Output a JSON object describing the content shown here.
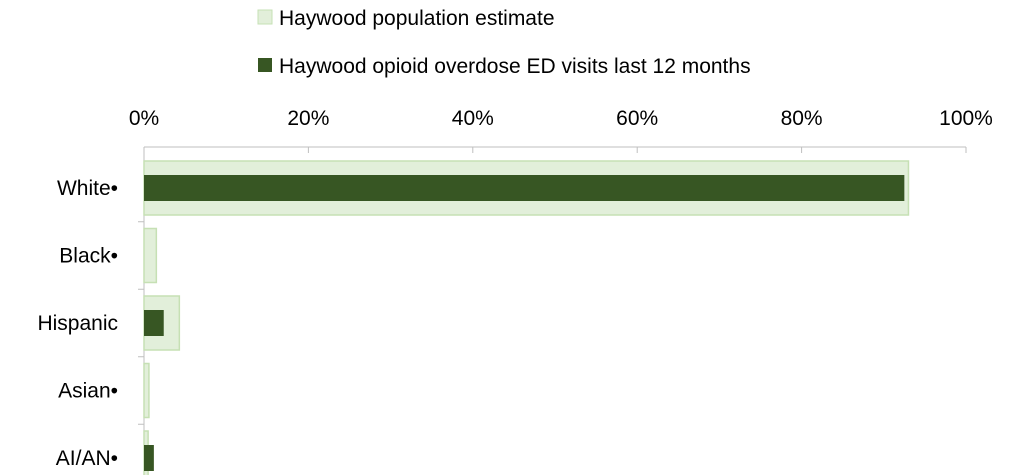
{
  "chart_data": {
    "type": "bar",
    "orientation": "horizontal",
    "categories": [
      "White•",
      "Black•",
      "Hispanic",
      "Asian•",
      "AI/AN•"
    ],
    "series": [
      {
        "name": "Haywood population estimate",
        "values": [
          93.0,
          1.5,
          4.3,
          0.6,
          0.5
        ],
        "color": "#e2efda",
        "border": "#c6e0b4"
      },
      {
        "name": "Haywood opioid overdose ED visits last 12 months",
        "values": [
          92.5,
          null,
          2.4,
          null,
          1.2
        ],
        "color": "#375623"
      }
    ],
    "xlim": [
      0,
      100
    ],
    "x_ticks": [
      "0%",
      "20%",
      "40%",
      "60%",
      "80%",
      "100%"
    ],
    "x_axis_position": "top",
    "legend_position": "top",
    "grid": false
  }
}
